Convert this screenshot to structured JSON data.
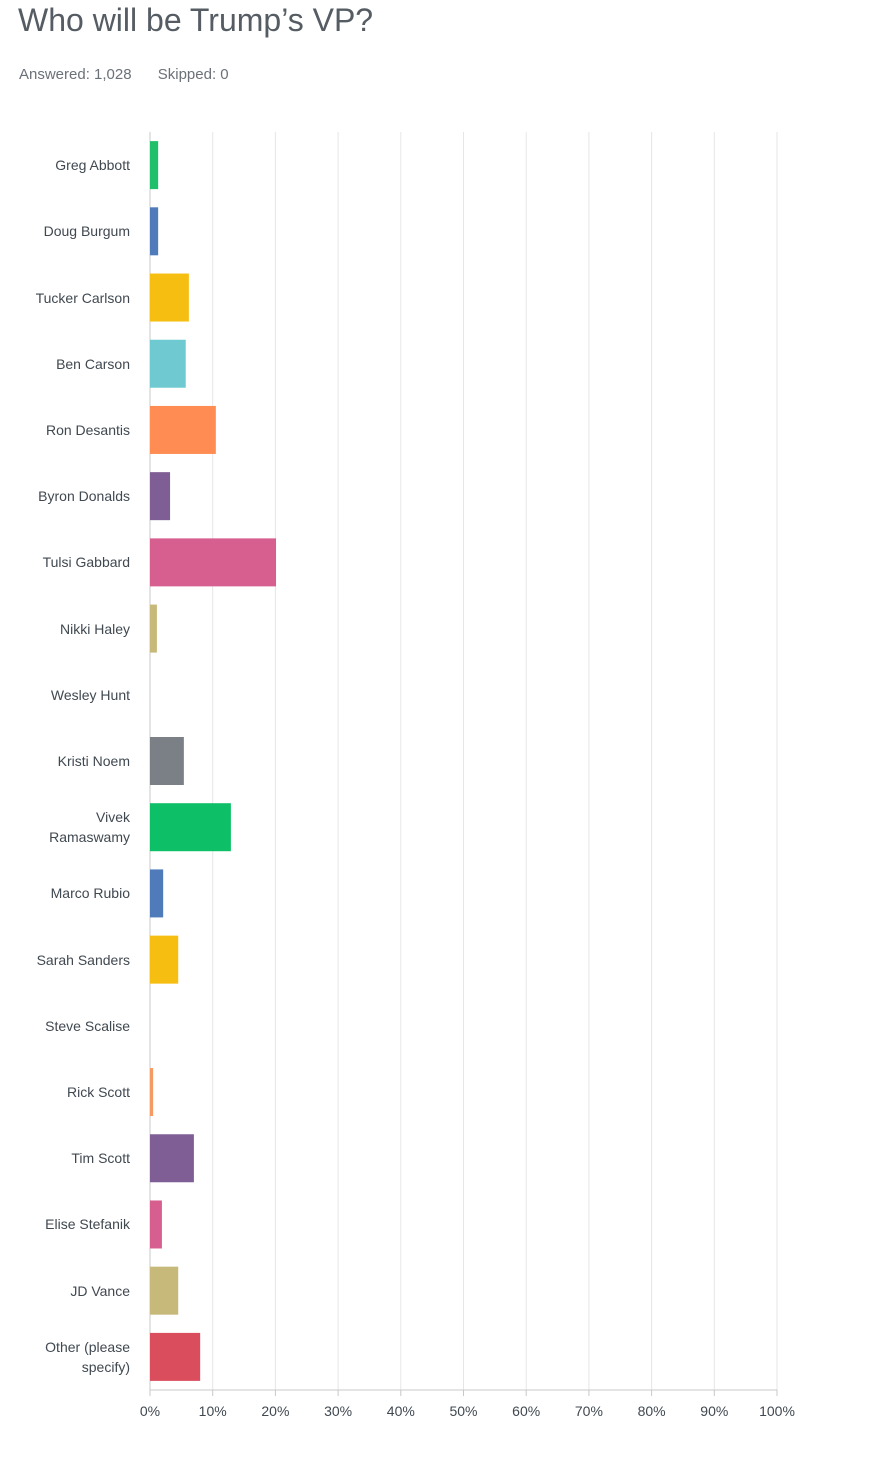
{
  "chart_data": {
    "type": "bar",
    "orientation": "horizontal",
    "title": "Who will be Trump’s VP?",
    "subtitle": [
      "Answered: 1,028",
      "Skipped: 0"
    ],
    "categories": [
      "Greg Abbott",
      "Doug Burgum",
      "Tucker Carlson",
      "Ben Carson",
      "Ron Desantis",
      "Byron Donalds",
      "Tulsi Gabbard",
      "Nikki Haley",
      "Wesley Hunt",
      "Kristi Noem",
      "Vivek Ramaswamy",
      "Marco Rubio",
      "Sarah Sanders",
      "Steve Scalise",
      "Rick Scott",
      "Tim Scott",
      "Elise Stefanik",
      "JD Vance",
      "Other (please specify)"
    ],
    "values": [
      1.3,
      1.3,
      6.2,
      5.7,
      10.5,
      3.2,
      20.1,
      1.1,
      0,
      5.4,
      12.9,
      2.1,
      4.5,
      0,
      0.5,
      7.0,
      1.9,
      4.5,
      8.0
    ],
    "colors": [
      "#20bf6b",
      "#4f7bbb",
      "#f7be12",
      "#6ecad0",
      "#ff8c52",
      "#7e5e94",
      "#d65f90",
      "#c7b97a",
      "#a4a4a4",
      "#7b8087",
      "#0dbf66",
      "#4f7bbb",
      "#f7be12",
      "#6ecad0",
      "#f59a63",
      "#7e5e94",
      "#d65f90",
      "#c7b97a",
      "#da4d5d"
    ],
    "xlim": [
      0,
      100
    ],
    "xticks": [
      {
        "value": 0,
        "label": "0%"
      },
      {
        "value": 10,
        "label": "10%"
      },
      {
        "value": 20,
        "label": "20%"
      },
      {
        "value": 30,
        "label": "30%"
      },
      {
        "value": 40,
        "label": "40%"
      },
      {
        "value": 50,
        "label": "50%"
      },
      {
        "value": 60,
        "label": "60%"
      },
      {
        "value": 70,
        "label": "70%"
      },
      {
        "value": 80,
        "label": "80%"
      },
      {
        "value": 90,
        "label": "90%"
      },
      {
        "value": 100,
        "label": "100%"
      }
    ],
    "grid": true
  }
}
